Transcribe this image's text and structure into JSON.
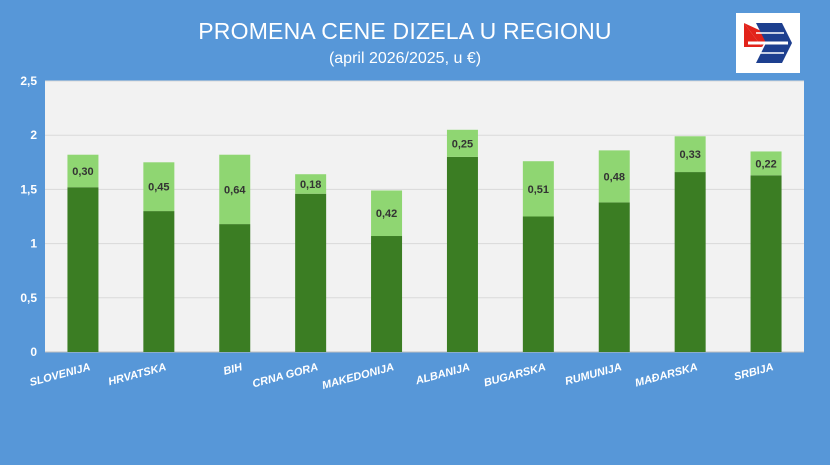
{
  "header": {
    "title": "PROMENA CENE DIZELA U REGIONU",
    "subtitle": "(april 2026/2025, u €)"
  },
  "logo": {
    "icon": "flag-arrow-logo-icon"
  },
  "colors": {
    "background": "#5797d8",
    "plot_area": "#f2f2f2",
    "base_bar": "#3b7d23",
    "increase_bar": "#8fd672",
    "logo_red": "#e2231a",
    "logo_blue": "#1d3f8f"
  },
  "chart_data": {
    "type": "bar",
    "stacked": true,
    "title": "PROMENA CENE DIZELA U REGIONU",
    "subtitle": "(april 2026/2025, u €)",
    "xlabel": "",
    "ylabel": "",
    "ylim": [
      0,
      2.5
    ],
    "yticks": [
      0,
      0.5,
      1,
      1.5,
      2,
      2.5
    ],
    "ytick_labels": [
      "0",
      "0,5",
      "1",
      "1,5",
      "2",
      "2,5"
    ],
    "grid": true,
    "legend": "none",
    "categories": [
      "SLOVENIJA",
      "HRVATSKA",
      "BIH",
      "CRNA GORA",
      "MAKEDONIJA",
      "ALBANIJA",
      "BUGARSKA",
      "RUMUNIJA",
      "MAĐARSKA",
      "SRBIJA"
    ],
    "series": [
      {
        "values": [
          1.52,
          1.3,
          1.18,
          1.46,
          1.07,
          1.8,
          1.25,
          1.38,
          1.66,
          1.63
        ]
      },
      {
        "values": [
          0.3,
          0.45,
          0.64,
          0.18,
          0.42,
          0.25,
          0.51,
          0.48,
          0.33,
          0.22
        ],
        "data_labels": [
          "0,30",
          "0,45",
          "0,64",
          "0,18",
          "0,42",
          "0,25",
          "0,51",
          "0,48",
          "0,33",
          "0,22"
        ]
      }
    ]
  }
}
